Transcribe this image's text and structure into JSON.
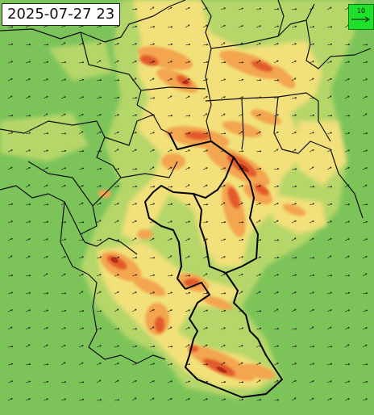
{
  "map": {
    "timestamp": "2025-07-27 23",
    "reference_vector": {
      "label": "10"
    },
    "colors": {
      "calm": "#7cc35a",
      "light": "#b9d86a",
      "moderate": "#f2e07a",
      "strong": "#f3a64f",
      "very_strong": "#e25a2b",
      "extreme": "#b42d1c",
      "borders": "#111111",
      "arrows": "#1a1a1a"
    },
    "field_description_layers": [
      "calm",
      "light",
      "moderate",
      "strong",
      "very_strong",
      "extreme"
    ]
  }
}
